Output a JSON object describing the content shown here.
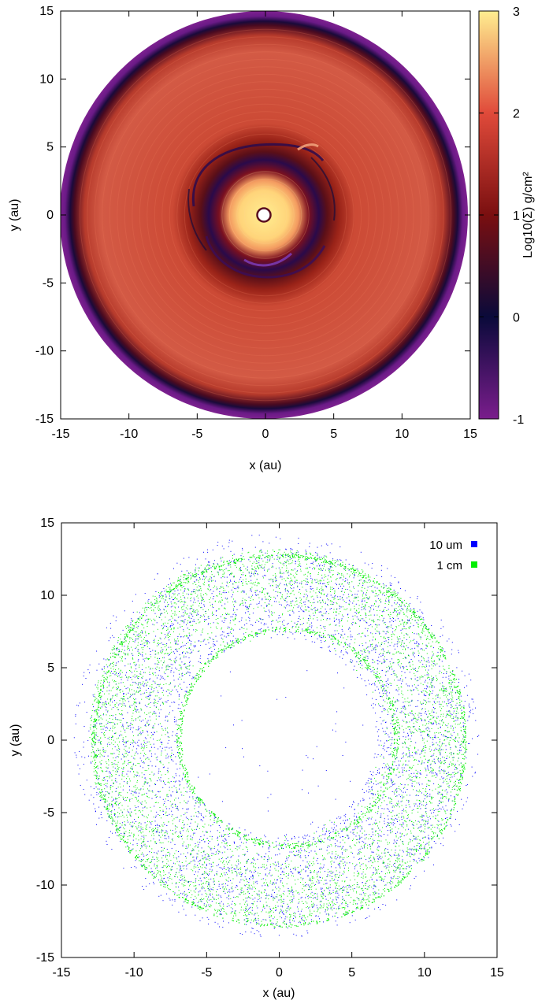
{
  "chart_data": [
    {
      "type": "heatmap",
      "title": "",
      "xlabel": "x (au)",
      "ylabel": "y (au)",
      "xlim": [
        -15,
        15
      ],
      "ylim": [
        -15,
        15
      ],
      "xticks": [
        "-15",
        "-10",
        "-5",
        "0",
        "5",
        "10",
        "15"
      ],
      "yticks": [
        "-15",
        "-10",
        "-5",
        "0",
        "5",
        "10",
        "15"
      ],
      "colorbar": {
        "label": "Log10(Σ)  g/cm²",
        "range": [
          -1,
          3
        ],
        "ticks": [
          "-1",
          "0",
          "1",
          "2",
          "3"
        ],
        "colormap": [
          "#7a1d8c",
          "#0a0a3a",
          "#7a0f10",
          "#e04a3a",
          "#ffee90"
        ]
      },
      "disk": {
        "outer_radius_au": 15,
        "inner_hole_radius_au": 0.6,
        "gap_radius_au": [
          3.5,
          5.8
        ],
        "profile": [
          {
            "r": 0.6,
            "log_sigma": 2.7
          },
          {
            "r": 2.5,
            "log_sigma": 2.2
          },
          {
            "r": 3.5,
            "log_sigma": 0.9
          },
          {
            "r": 4.5,
            "log_sigma": 0.3
          },
          {
            "r": 5.8,
            "log_sigma": 1.1
          },
          {
            "r": 8,
            "log_sigma": 1.6
          },
          {
            "r": 13,
            "log_sigma": 1.6
          },
          {
            "r": 14.2,
            "log_sigma": 0.2
          },
          {
            "r": 15,
            "log_sigma": -0.8
          }
        ]
      }
    },
    {
      "type": "scatter",
      "title": "",
      "xlabel": "x (au)",
      "ylabel": "y (au)",
      "xlim": [
        -15,
        15
      ],
      "ylim": [
        -15,
        15
      ],
      "xticks": [
        "-15",
        "-10",
        "-5",
        "0",
        "5",
        "10",
        "15"
      ],
      "yticks": [
        "-15",
        "-10",
        "-5",
        "0",
        "5",
        "10",
        "15"
      ],
      "legend_position": "top-right",
      "series": [
        {
          "name": "10 um",
          "color": "#0000ff",
          "ring_radius_au": [
            6.8,
            14
          ],
          "center_au": [
            0,
            0
          ]
        },
        {
          "name": "1 cm",
          "color": "#00ee00",
          "ring_radius_au": [
            6.8,
            12.9
          ],
          "center_au": [
            0,
            0
          ]
        }
      ]
    }
  ]
}
